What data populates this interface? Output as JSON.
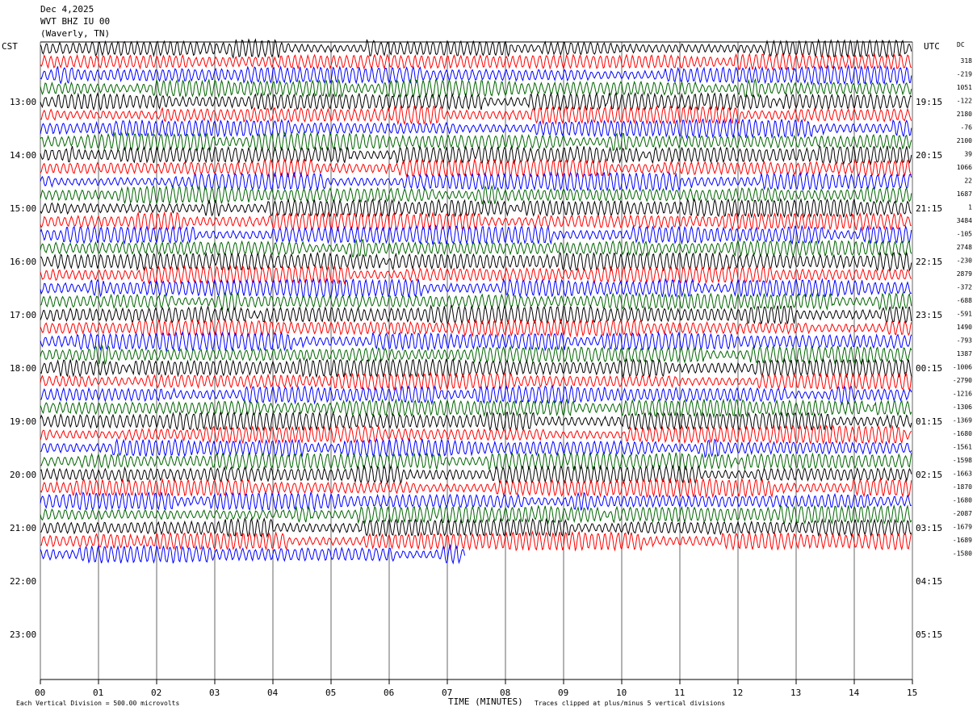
{
  "header": {
    "date": "Dec 4,2025",
    "station": "WVT BHZ IU 00",
    "location": "(Waverly, TN)"
  },
  "axis": {
    "left_label": "CST",
    "right_label": "UTC",
    "dc_label": "DC",
    "x_title": "TIME (MINUTES)",
    "x_ticks": [
      "00",
      "01",
      "02",
      "03",
      "04",
      "05",
      "06",
      "07",
      "08",
      "09",
      "10",
      "11",
      "12",
      "13",
      "14",
      "15"
    ]
  },
  "footer": {
    "scale_note": "Each Vertical Division =  500.00 microvolts",
    "clip_note": "Traces clipped at plus/minus 5 vertical divisions"
  },
  "colors": {
    "trace_cycle": [
      "#000000",
      "#ff0000",
      "#0000ff",
      "#006400"
    ],
    "grid": "#000000",
    "background": "#ffffff"
  },
  "chart_data": {
    "type": "line",
    "title": "WVT BHZ IU 00 (Waverly, TN)",
    "xlabel": "TIME (MINUTES)",
    "xlim": [
      0,
      15
    ],
    "minutes_per_trace": 15,
    "traces_per_hour": 4,
    "first_hour_cst": 12,
    "hour_rows_cst": [
      "13:00",
      "14:00",
      "15:00",
      "16:00",
      "17:00",
      "18:00",
      "19:00",
      "20:00",
      "21:00",
      "22:00",
      "23:00"
    ],
    "hour_rows_utc": [
      "19:15",
      "20:15",
      "21:15",
      "22:15",
      "23:15",
      "00:15",
      "01:15",
      "02:15",
      "03:15",
      "04:15",
      "05:15"
    ],
    "trace_count": 39,
    "last_trace_end_minute": 7.3,
    "dc_offsets": [
      "318",
      "-219",
      "1051",
      "-122",
      "2180",
      "-76",
      "2100",
      "39",
      "1066",
      "22",
      "1687",
      "1",
      "3484",
      "-105",
      "2748",
      "-230",
      "2879",
      "-372",
      "-688",
      "-591",
      "1490",
      "-793",
      "1387",
      "-1006",
      "-2790",
      "-1216",
      "-1306",
      "-1369",
      "-1680",
      "-1561",
      "-1598",
      "-1663",
      "-1870",
      "-1680",
      "-2087",
      "-1679",
      "-1689",
      "-1580"
    ],
    "vertical_division_microvolts": 500
  }
}
